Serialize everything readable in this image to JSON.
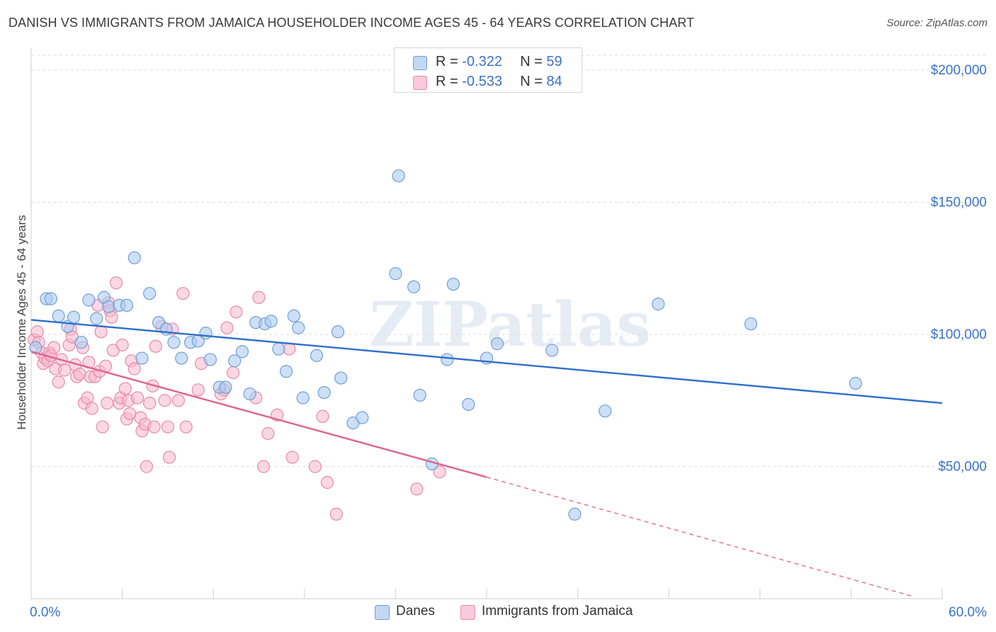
{
  "title": "DANISH VS IMMIGRANTS FROM JAMAICA HOUSEHOLDER INCOME AGES 45 - 64 YEARS CORRELATION CHART",
  "source": "Source: ZipAtlas.com",
  "watermark": "ZIPatlas",
  "legend": {
    "danes": {
      "r_label": "R = ",
      "r_value": "-0.322",
      "n_label": "N = ",
      "n_value": "59"
    },
    "jamaica": {
      "r_label": "R = ",
      "r_value": "-0.533",
      "n_label": "N = ",
      "n_value": "84"
    }
  },
  "colors": {
    "danes_fill": "#aecbf0",
    "danes_stroke": "#6f9fd8",
    "danes_line": "#2f6fce",
    "jamaica_fill": "#f5b8cc",
    "jamaica_stroke": "#e989a8",
    "jamaica_line": "#e0628e",
    "axis_text": "#3b73c8",
    "grid": "#dddddd"
  },
  "chart_data": {
    "type": "scatter",
    "xlabel": "",
    "ylabel": "Householder Income Ages 45 - 64 years",
    "xlim": [
      0,
      60
    ],
    "ylim": [
      0,
      210000
    ],
    "x_tick_labels": [
      {
        "x": 0,
        "label": "0.0%"
      },
      {
        "x": 60,
        "label": "60.0%"
      }
    ],
    "y_ticks": [
      {
        "y": 50000,
        "label": "$50,000"
      },
      {
        "y": 100000,
        "label": "$100,000"
      },
      {
        "y": 150000,
        "label": "$150,000"
      },
      {
        "y": 200000,
        "label": "$200,000"
      }
    ],
    "grid": true,
    "legend_position": "top-center",
    "series": [
      {
        "name": "Danes",
        "trend": {
          "x0": 0,
          "y0": 105500,
          "x1": 60,
          "y1": 74000
        },
        "points": [
          [
            0.3,
            95000
          ],
          [
            1.0,
            113500
          ],
          [
            1.3,
            113500
          ],
          [
            1.8,
            107000
          ],
          [
            2.4,
            103000
          ],
          [
            2.8,
            106500
          ],
          [
            3.3,
            97000
          ],
          [
            3.8,
            113000
          ],
          [
            4.3,
            106000
          ],
          [
            4.8,
            114000
          ],
          [
            5.1,
            110500
          ],
          [
            5.8,
            111000
          ],
          [
            6.3,
            111000
          ],
          [
            6.8,
            129000
          ],
          [
            7.3,
            91000
          ],
          [
            7.8,
            115500
          ],
          [
            8.4,
            104500
          ],
          [
            8.9,
            102000
          ],
          [
            9.4,
            97000
          ],
          [
            9.9,
            91000
          ],
          [
            10.5,
            97000
          ],
          [
            11.0,
            97500
          ],
          [
            11.5,
            100500
          ],
          [
            11.8,
            90500
          ],
          [
            12.4,
            80000
          ],
          [
            12.8,
            80000
          ],
          [
            13.4,
            90000
          ],
          [
            13.9,
            93500
          ],
          [
            14.4,
            77500
          ],
          [
            14.8,
            104500
          ],
          [
            15.4,
            104000
          ],
          [
            15.8,
            105000
          ],
          [
            16.3,
            94500
          ],
          [
            16.8,
            86000
          ],
          [
            17.3,
            107000
          ],
          [
            17.6,
            102500
          ],
          [
            17.9,
            76000
          ],
          [
            18.8,
            92000
          ],
          [
            19.3,
            78000
          ],
          [
            20.2,
            101000
          ],
          [
            20.4,
            83500
          ],
          [
            21.2,
            66500
          ],
          [
            21.8,
            68500
          ],
          [
            24.0,
            123000
          ],
          [
            24.2,
            160000
          ],
          [
            25.2,
            118000
          ],
          [
            25.6,
            77000
          ],
          [
            26.4,
            51000
          ],
          [
            27.4,
            90500
          ],
          [
            27.8,
            119000
          ],
          [
            28.8,
            73500
          ],
          [
            30.0,
            91000
          ],
          [
            30.7,
            96500
          ],
          [
            34.3,
            94000
          ],
          [
            35.8,
            32000
          ],
          [
            37.8,
            71000
          ],
          [
            41.3,
            111500
          ],
          [
            47.4,
            104000
          ],
          [
            54.3,
            81500
          ]
        ]
      },
      {
        "name": "Immigrants from Jamaica",
        "trend": {
          "x0": 0,
          "y0": 93500,
          "x1": 30,
          "y1": 46000
        },
        "trend_dashed": {
          "x0": 30,
          "y0": 46000,
          "x1": 58,
          "y1": 1000
        },
        "points": [
          [
            0.2,
            98000
          ],
          [
            0.4,
            101000
          ],
          [
            0.5,
            97000
          ],
          [
            0.7,
            93000
          ],
          [
            0.8,
            89000
          ],
          [
            0.9,
            91000
          ],
          [
            1.1,
            90000
          ],
          [
            1.2,
            93000
          ],
          [
            1.3,
            92000
          ],
          [
            1.5,
            95000
          ],
          [
            1.6,
            87000
          ],
          [
            1.8,
            82000
          ],
          [
            2.0,
            90500
          ],
          [
            2.2,
            86500
          ],
          [
            2.5,
            96000
          ],
          [
            2.6,
            102000
          ],
          [
            2.7,
            99000
          ],
          [
            2.9,
            88500
          ],
          [
            3.0,
            84000
          ],
          [
            3.2,
            85000
          ],
          [
            3.4,
            95000
          ],
          [
            3.5,
            74000
          ],
          [
            3.7,
            76000
          ],
          [
            3.8,
            89500
          ],
          [
            3.9,
            84000
          ],
          [
            4.0,
            72000
          ],
          [
            4.2,
            84000
          ],
          [
            4.4,
            111000
          ],
          [
            4.5,
            86000
          ],
          [
            4.6,
            101000
          ],
          [
            4.7,
            65000
          ],
          [
            4.9,
            88000
          ],
          [
            5.0,
            74000
          ],
          [
            5.1,
            112000
          ],
          [
            5.2,
            109000
          ],
          [
            5.3,
            106500
          ],
          [
            5.4,
            94000
          ],
          [
            5.6,
            119500
          ],
          [
            5.8,
            74000
          ],
          [
            5.9,
            76000
          ],
          [
            6.0,
            96000
          ],
          [
            6.2,
            79500
          ],
          [
            6.3,
            68000
          ],
          [
            6.4,
            75000
          ],
          [
            6.5,
            70000
          ],
          [
            6.6,
            90000
          ],
          [
            6.8,
            87000
          ],
          [
            7.0,
            76000
          ],
          [
            7.2,
            68500
          ],
          [
            7.3,
            63500
          ],
          [
            7.5,
            66000
          ],
          [
            7.6,
            50000
          ],
          [
            7.8,
            74000
          ],
          [
            8.0,
            80500
          ],
          [
            8.1,
            65000
          ],
          [
            8.2,
            95500
          ],
          [
            8.6,
            103000
          ],
          [
            8.8,
            75000
          ],
          [
            9.0,
            65000
          ],
          [
            9.1,
            53500
          ],
          [
            9.3,
            102000
          ],
          [
            9.7,
            75000
          ],
          [
            10.0,
            115500
          ],
          [
            10.2,
            65000
          ],
          [
            11.0,
            79000
          ],
          [
            11.2,
            89000
          ],
          [
            12.5,
            77500
          ],
          [
            12.7,
            79000
          ],
          [
            12.9,
            102500
          ],
          [
            13.3,
            85500
          ],
          [
            13.5,
            108500
          ],
          [
            14.8,
            76000
          ],
          [
            15.0,
            114000
          ],
          [
            15.3,
            50000
          ],
          [
            15.6,
            62500
          ],
          [
            16.2,
            69500
          ],
          [
            17.0,
            94500
          ],
          [
            17.2,
            53500
          ],
          [
            18.7,
            50000
          ],
          [
            19.2,
            69000
          ],
          [
            19.5,
            44000
          ],
          [
            20.1,
            32000
          ],
          [
            25.4,
            41500
          ],
          [
            26.9,
            48000
          ]
        ]
      }
    ]
  },
  "bottom_legend": {
    "danes": "Danes",
    "jamaica": "Immigrants from Jamaica"
  }
}
